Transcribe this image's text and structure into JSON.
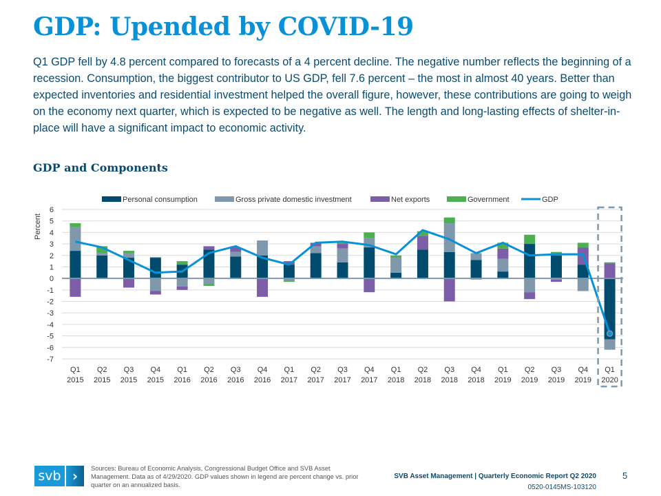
{
  "title": "GDP: Upended by COVID-19",
  "intro": "Q1 GDP fell by 4.8 percent compared to forecasts of a 4 percent decline. The negative number reflects the beginning of a recession. Consumption, the biggest contributor to US GDP, fell 7.6 percent – the most in almost 40 years. Better than expected inventories and residential investment helped the overall figure, however, these contributions are going to weigh on the economy next quarter, which is expected to be negative as well. The length and long-lasting effects of shelter-in-place will have a significant impact to economic activity.",
  "section_heading": "GDP and Components",
  "colors": {
    "personal_consumption": "#004b6e",
    "investment": "#7f98ab",
    "net_exports": "#7b5ea7",
    "government": "#4caf50",
    "gdp": "#0891d6",
    "highlight_box": "#7f98ab"
  },
  "chart_data": {
    "type": "bar",
    "stacked": true,
    "title": "GDP and Components",
    "xlabel": "",
    "ylabel": "Percent",
    "ylim": [
      -7,
      6
    ],
    "yticks": [
      6,
      5,
      4,
      3,
      2,
      1,
      0,
      -1,
      -2,
      -3,
      -4,
      -5,
      -6,
      -7
    ],
    "grid": true,
    "legend_position": "top",
    "categories": [
      [
        "Q1",
        "2015"
      ],
      [
        "Q2",
        "2015"
      ],
      [
        "Q3",
        "2015"
      ],
      [
        "Q4",
        "2015"
      ],
      [
        "Q1",
        "2016"
      ],
      [
        "Q2",
        "2016"
      ],
      [
        "Q3",
        "2016"
      ],
      [
        "Q4",
        "2016"
      ],
      [
        "Q1",
        "2017"
      ],
      [
        "Q2",
        "2017"
      ],
      [
        "Q3",
        "2017"
      ],
      [
        "Q4",
        "2017"
      ],
      [
        "Q1",
        "2018"
      ],
      [
        "Q2",
        "2018"
      ],
      [
        "Q3",
        "2018"
      ],
      [
        "Q4",
        "2018"
      ],
      [
        "Q1",
        "2019"
      ],
      [
        "Q2",
        "2019"
      ],
      [
        "Q3",
        "2019"
      ],
      [
        "Q4",
        "2019"
      ],
      [
        "Q1",
        "2020"
      ]
    ],
    "series": [
      {
        "name": "Personal consumption",
        "key": "personal_consumption",
        "type": "bar",
        "values": [
          2.4,
          2.0,
          1.8,
          1.8,
          1.2,
          2.5,
          1.9,
          2.0,
          1.2,
          2.2,
          1.4,
          2.7,
          0.5,
          2.5,
          2.3,
          1.6,
          0.6,
          3.0,
          2.0,
          1.2,
          -5.3
        ]
      },
      {
        "name": "Gross private domestic investment",
        "key": "investment",
        "type": "bar",
        "values": [
          2.1,
          0.2,
          0.4,
          -1.1,
          -0.7,
          -0.5,
          0.4,
          1.3,
          -0.2,
          0.6,
          1.2,
          0.8,
          1.3,
          0.0,
          2.5,
          0.6,
          1.1,
          -1.2,
          -0.1,
          -1.1,
          -0.9
        ]
      },
      {
        "name": "Net exports",
        "key": "net_exports",
        "type": "bar",
        "values": [
          -1.6,
          0.0,
          -0.8,
          -0.3,
          -0.3,
          0.3,
          0.4,
          -1.6,
          0.3,
          0.3,
          0.4,
          -1.2,
          0.0,
          1.2,
          -2.0,
          0.0,
          0.9,
          -0.6,
          -0.2,
          1.5,
          1.3
        ]
      },
      {
        "name": "Government",
        "key": "government",
        "type": "bar",
        "values": [
          0.3,
          0.6,
          0.2,
          0.05,
          0.3,
          -0.15,
          0.0,
          0.0,
          -0.1,
          0.0,
          0.1,
          0.5,
          0.2,
          0.4,
          0.5,
          -0.1,
          0.5,
          0.8,
          0.3,
          0.4,
          0.1
        ]
      },
      {
        "name": "GDP",
        "key": "gdp",
        "type": "line",
        "values": [
          3.2,
          2.7,
          1.6,
          0.5,
          0.6,
          2.2,
          2.8,
          1.8,
          1.2,
          3.1,
          3.2,
          2.9,
          2.1,
          4.2,
          3.4,
          2.2,
          3.1,
          2.0,
          2.1,
          2.1,
          -4.8
        ]
      }
    ],
    "highlight": {
      "category_index": 20,
      "style": "dashed-box"
    }
  },
  "footer": {
    "logo_text": "svb",
    "logo_chevron": "›",
    "sources": "Sources: Bureau of Economic Analysis, Congressional Budget Office and SVB Asset Management. Data as of 4/29/2020. GDP values shown in legend are percent change vs. prior quarter on an annualized basis.",
    "report": "SVB Asset Management | Quarterly Economic Report Q2 2020",
    "code": "0520-0145MS-103120",
    "page_number": "5"
  }
}
